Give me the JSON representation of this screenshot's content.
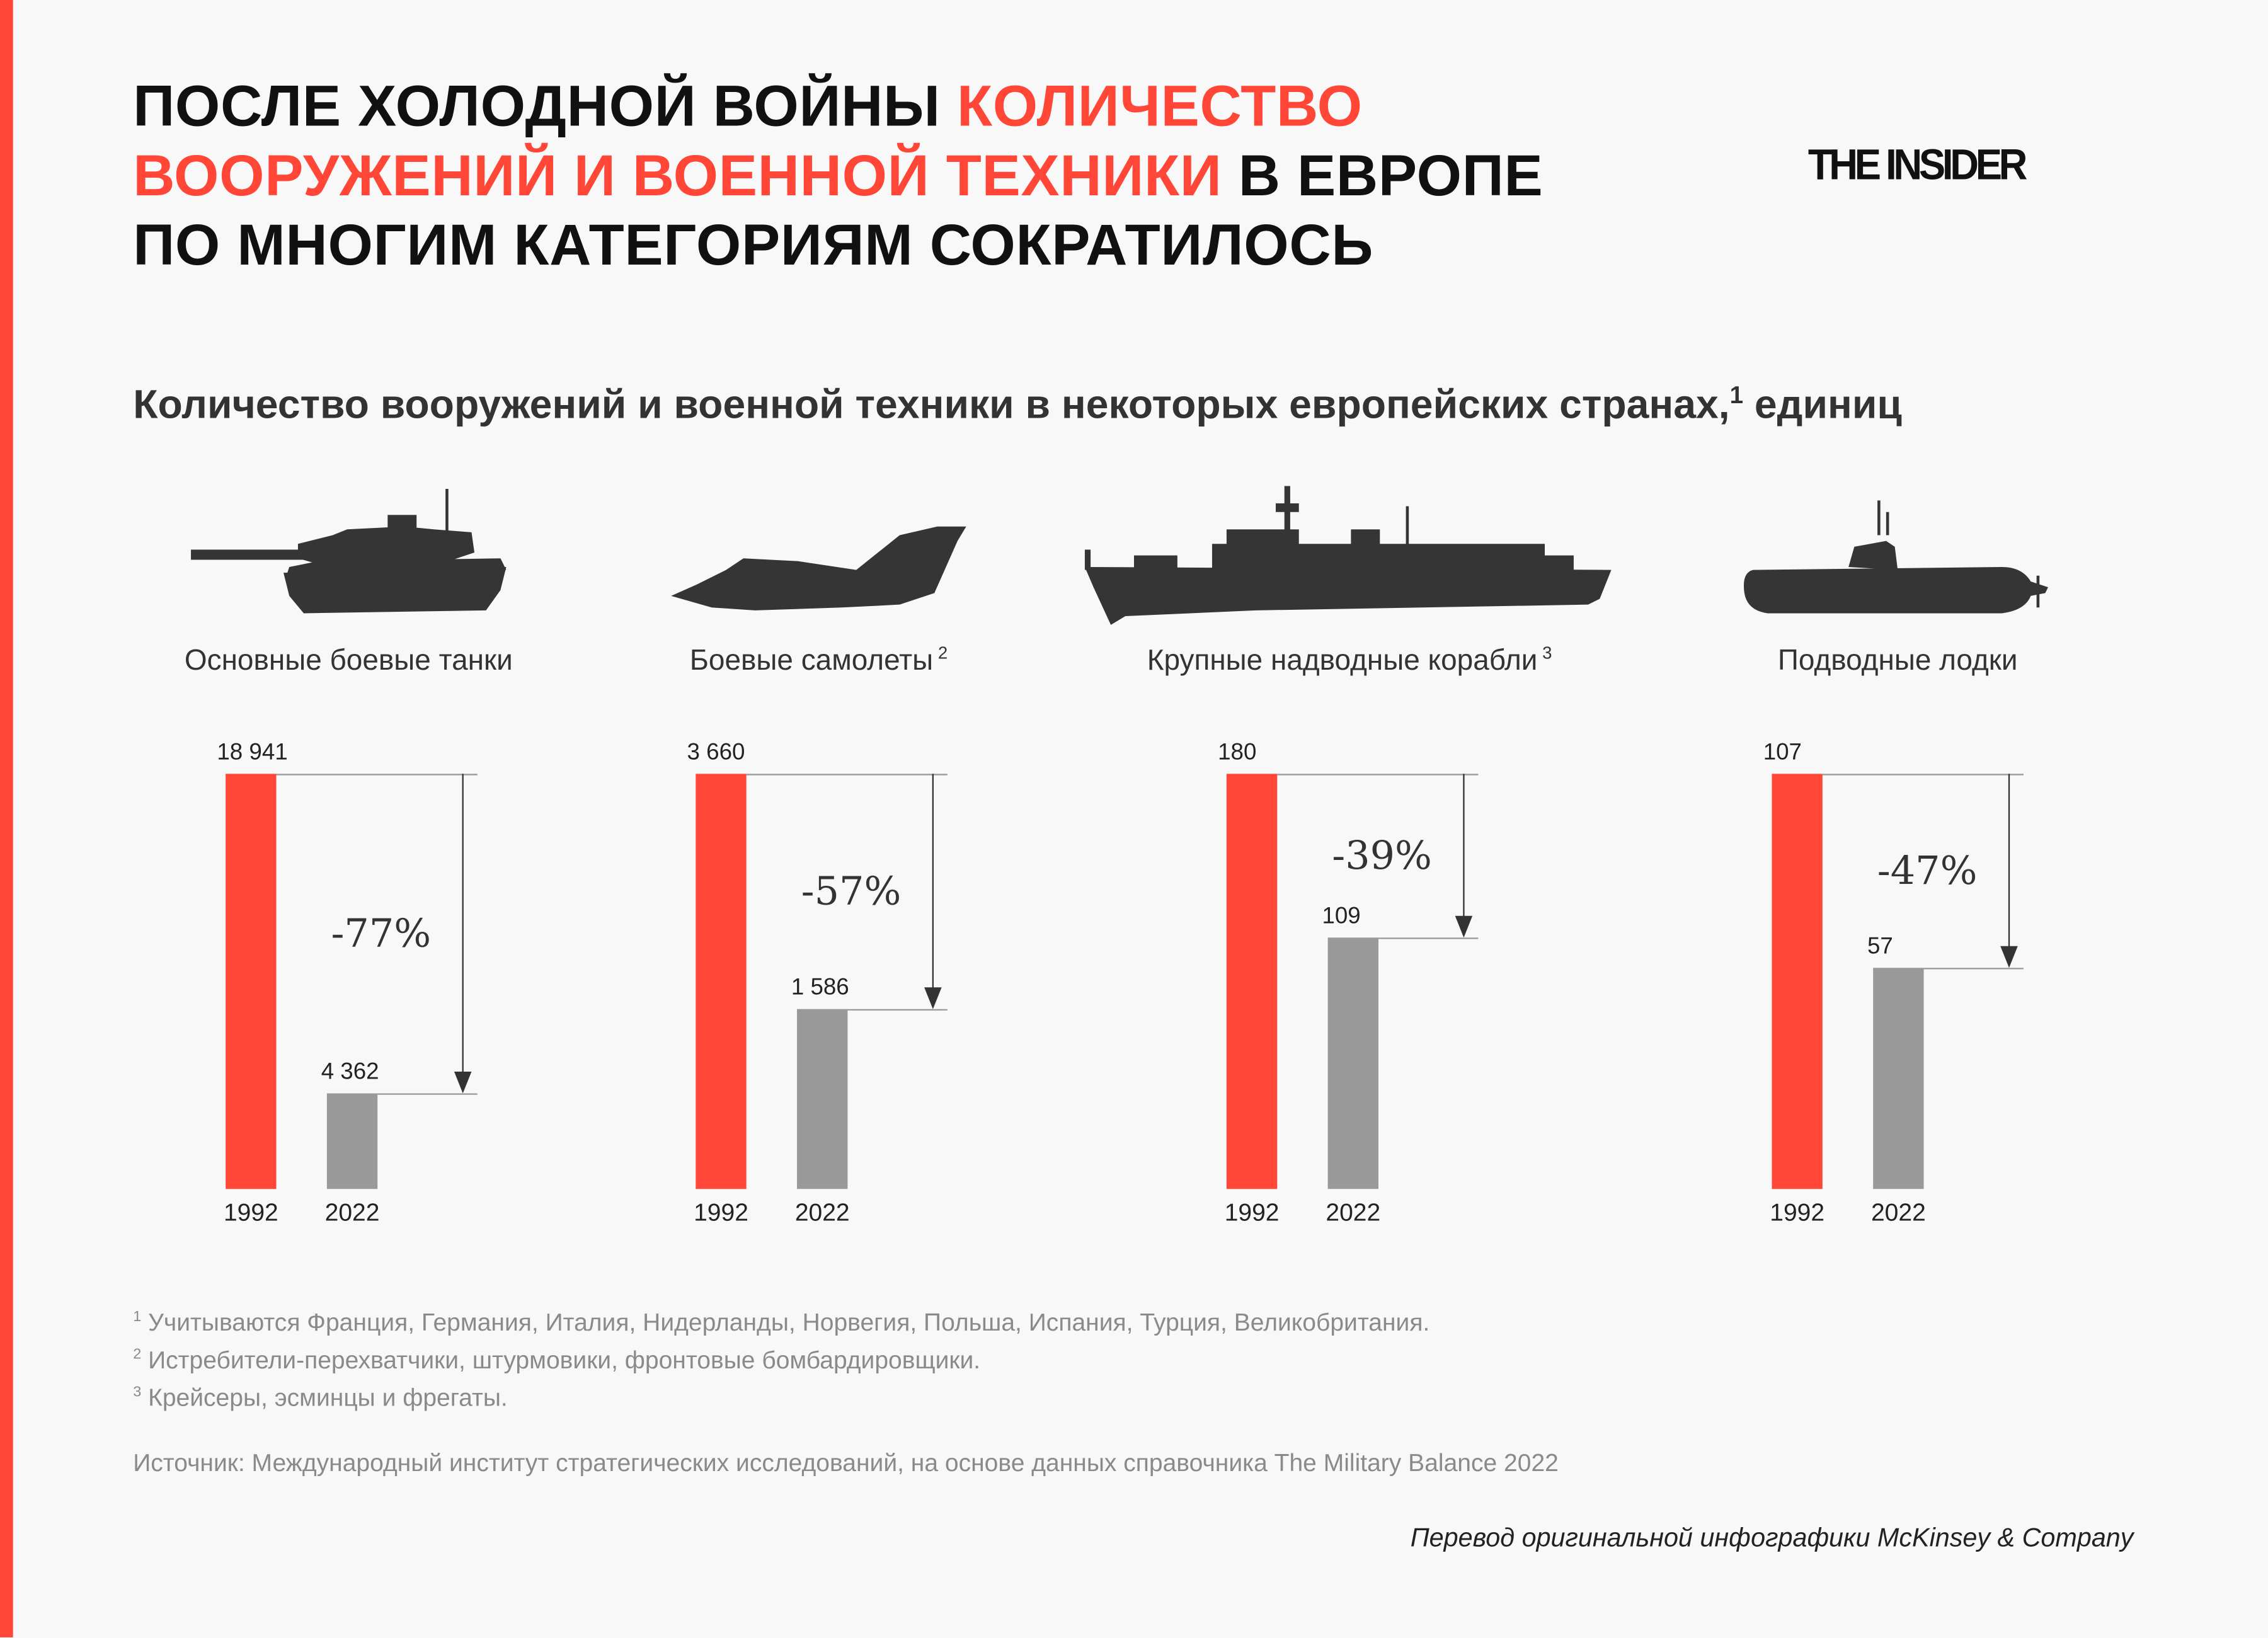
{
  "title": {
    "part1": "ПОСЛЕ ХОЛОДНОЙ ВОЙНЫ ",
    "part2": "КОЛИЧЕСТВО",
    "part3": "ВООРУЖЕНИЙ И ВОЕННОЙ ТЕХНИКИ",
    "part4": " В ЕВРОПЕ",
    "part5": "ПО МНОГИМ КАТЕГОРИЯМ СОКРАТИЛОСЬ",
    "highlight_color": "#ff4637"
  },
  "logo": "THE INSIDER",
  "chart_data": {
    "type": "bar",
    "title": "Количество вооружений и военной техники в некоторых европейских странах,",
    "title_sup": "1",
    "title_suffix": " единиц",
    "categories": [
      "1992",
      "2022"
    ],
    "colors": {
      "1992": "#ff4637",
      "2022": "#999999"
    },
    "panels": [
      {
        "label": "Основные боевые танки",
        "sup": "",
        "icon": "tank-icon",
        "values": [
          18941
        ],
        "v1992": "18 941",
        "v2022": "4 362",
        "n1992": 18941,
        "n2022": 4362,
        "change": "-77%"
      },
      {
        "label": "Боевые самолеты",
        "sup": "2",
        "icon": "jet-icon",
        "v1992": "3 660",
        "v2022": "1 586",
        "n1992": 3660,
        "n2022": 1586,
        "change": "-57%"
      },
      {
        "label": "Крупные надводные корабли",
        "sup": "3",
        "icon": "ship-icon",
        "v1992": "180",
        "v2022": "109",
        "n1992": 180,
        "n2022": 109,
        "change": "-39%"
      },
      {
        "label": "Подводные лодки",
        "sup": "",
        "icon": "submarine-icon",
        "v1992": "107",
        "v2022": "57",
        "n1992": 107,
        "n2022": 57,
        "change": "-47%"
      }
    ]
  },
  "footnotes": [
    {
      "sup": "1",
      "text": " Учитываются Франция, Германия, Италия, Нидерланды, Норвегия, Польша, Испания, Турция, Великобритания."
    },
    {
      "sup": "2",
      "text": " Истребители-перехватчики, штурмовики, фронтовые бомбардировщики."
    },
    {
      "sup": "3",
      "text": " Крейсеры, эсминцы и фрегаты."
    }
  ],
  "source": "Источник: Международный институт стратегических исследований, на основе данных справочника The Military Balance 2022",
  "credit": "Перевод оригинальной инфографики McKinsey & Company"
}
